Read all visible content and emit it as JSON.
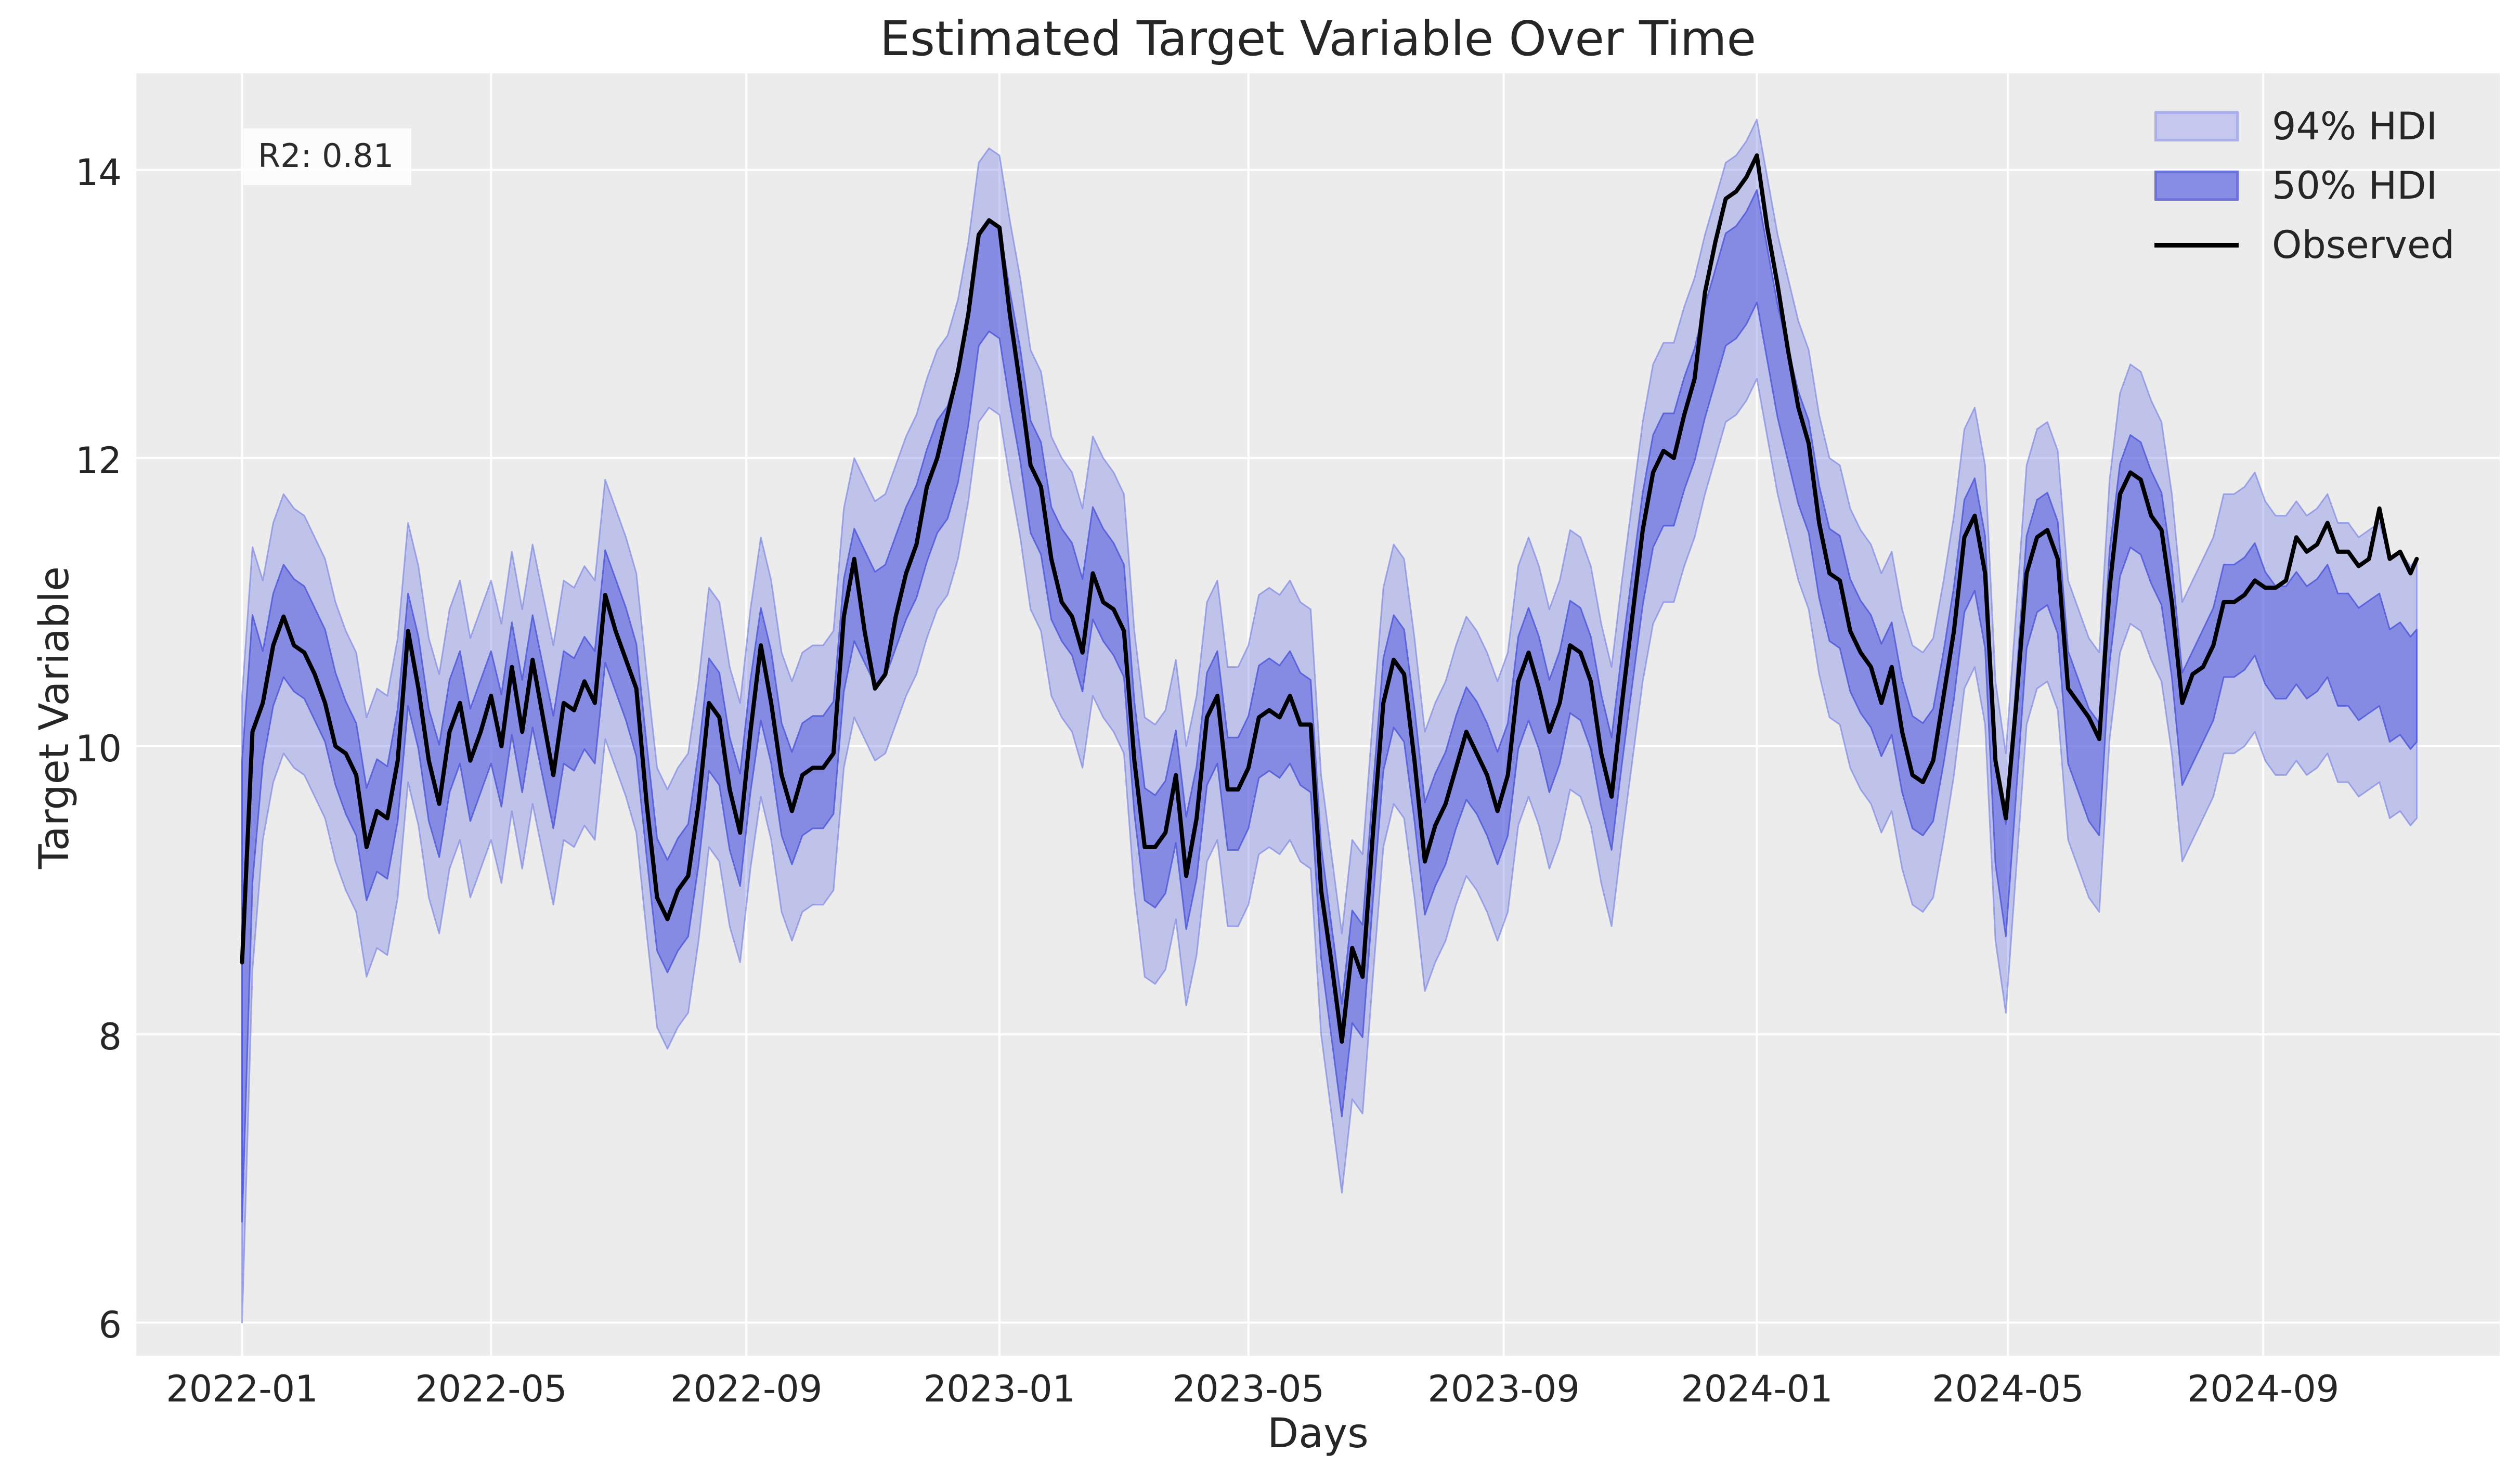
{
  "figure": {
    "title": "Estimated Target Variable Over Time"
  },
  "axes": {
    "xlabel": "Days",
    "ylabel": "Target Variable"
  },
  "annotation": {
    "r2_label": "R2: 0.81"
  },
  "legend": {
    "items": [
      {
        "label": "94% HDI",
        "swatch": "hdi94-patch"
      },
      {
        "label": "50% HDI",
        "swatch": "hdi50-patch"
      },
      {
        "label": "Observed",
        "swatch": "observed-line"
      }
    ]
  },
  "colors": {
    "axes_bg": "#ececec",
    "grid": "#ffffff",
    "band94_fill": "rgba(122,130,228,0.38)",
    "band94_edge": "rgba(122,130,228,0.65)",
    "band50_fill": "rgba(93,102,223,0.60)",
    "band50_edge": "rgba(80,89,218,0.85)",
    "observed": "#000000",
    "text": "#262626"
  },
  "chart_data": {
    "type": "line",
    "title": "Estimated Target Variable Over Time",
    "xlabel": "Days",
    "ylabel": "Target Variable",
    "legend_entries": [
      "94% HDI",
      "50% HDI",
      "Observed"
    ],
    "legend_position": "upper right",
    "grid": true,
    "x_unit": "days since 2022-01-01",
    "xlim_days": [
      -51,
      1088
    ],
    "ylim": [
      5.77,
      14.67
    ],
    "x_ticks": [
      {
        "day": 0,
        "label": "2022-01"
      },
      {
        "day": 120,
        "label": "2022-05"
      },
      {
        "day": 243,
        "label": "2022-09"
      },
      {
        "day": 365,
        "label": "2023-01"
      },
      {
        "day": 485,
        "label": "2023-05"
      },
      {
        "day": 608,
        "label": "2023-09"
      },
      {
        "day": 730,
        "label": "2024-01"
      },
      {
        "day": 851,
        "label": "2024-05"
      },
      {
        "day": 974,
        "label": "2024-09"
      }
    ],
    "y_ticks": [
      {
        "value": 6,
        "label": "6"
      },
      {
        "value": 8,
        "label": "8"
      },
      {
        "value": 10,
        "label": "10"
      },
      {
        "value": 12,
        "label": "12"
      },
      {
        "value": 14,
        "label": "14"
      }
    ],
    "days": [
      0,
      5,
      10,
      15,
      20,
      25,
      30,
      35,
      40,
      45,
      50,
      55,
      60,
      65,
      70,
      75,
      80,
      85,
      90,
      95,
      100,
      105,
      110,
      115,
      120,
      125,
      130,
      135,
      140,
      145,
      150,
      155,
      160,
      165,
      170,
      175,
      180,
      185,
      190,
      195,
      200,
      205,
      210,
      215,
      220,
      225,
      230,
      235,
      240,
      245,
      250,
      255,
      260,
      265,
      270,
      275,
      280,
      285,
      290,
      295,
      300,
      305,
      310,
      315,
      320,
      325,
      330,
      335,
      340,
      345,
      350,
      355,
      360,
      365,
      370,
      375,
      380,
      385,
      390,
      395,
      400,
      405,
      410,
      415,
      420,
      425,
      430,
      435,
      440,
      445,
      450,
      455,
      460,
      465,
      470,
      475,
      480,
      485,
      490,
      495,
      500,
      505,
      510,
      515,
      520,
      525,
      530,
      535,
      540,
      545,
      550,
      555,
      560,
      565,
      570,
      575,
      580,
      585,
      590,
      595,
      600,
      605,
      610,
      615,
      620,
      625,
      630,
      635,
      640,
      645,
      650,
      655,
      660,
      665,
      670,
      675,
      680,
      685,
      690,
      695,
      700,
      705,
      710,
      715,
      720,
      725,
      730,
      735,
      740,
      745,
      750,
      755,
      760,
      765,
      770,
      775,
      780,
      785,
      790,
      795,
      800,
      805,
      810,
      815,
      820,
      825,
      830,
      835,
      840,
      845,
      850,
      855,
      860,
      865,
      870,
      875,
      880,
      885,
      890,
      895,
      900,
      905,
      910,
      915,
      920,
      925,
      930,
      935,
      940,
      945,
      950,
      955,
      960,
      965,
      970,
      975,
      980,
      985,
      990,
      995,
      1000,
      1005,
      1010,
      1015,
      1020,
      1025,
      1030,
      1035,
      1040,
      1045,
      1048
    ],
    "observed": [
      8.5,
      10.1,
      10.3,
      10.7,
      10.9,
      10.7,
      10.65,
      10.5,
      10.3,
      10.0,
      9.95,
      9.8,
      9.3,
      9.55,
      9.5,
      9.9,
      10.8,
      10.4,
      9.9,
      9.6,
      10.1,
      10.3,
      9.9,
      10.1,
      10.35,
      10.0,
      10.55,
      10.1,
      10.6,
      10.2,
      9.8,
      10.3,
      10.25,
      10.45,
      10.3,
      11.05,
      10.8,
      10.6,
      10.4,
      9.6,
      8.95,
      8.8,
      9.0,
      9.1,
      9.6,
      10.3,
      10.2,
      9.7,
      9.4,
      10.1,
      10.7,
      10.3,
      9.8,
      9.55,
      9.8,
      9.85,
      9.85,
      9.95,
      10.9,
      11.3,
      10.8,
      10.4,
      10.5,
      10.9,
      11.2,
      11.4,
      11.8,
      12.0,
      12.3,
      12.6,
      13.0,
      13.55,
      13.65,
      13.6,
      13.0,
      12.5,
      11.95,
      11.8,
      11.3,
      11.0,
      10.9,
      10.65,
      11.2,
      11.0,
      10.95,
      10.8,
      9.9,
      9.3,
      9.3,
      9.4,
      9.8,
      9.1,
      9.5,
      10.2,
      10.35,
      9.7,
      9.7,
      9.85,
      10.2,
      10.25,
      10.2,
      10.35,
      10.15,
      10.15,
      9.0,
      8.5,
      7.95,
      8.6,
      8.4,
      9.4,
      10.3,
      10.6,
      10.5,
      9.9,
      9.2,
      9.45,
      9.6,
      9.85,
      10.1,
      9.95,
      9.8,
      9.55,
      9.8,
      10.45,
      10.65,
      10.4,
      10.1,
      10.3,
      10.7,
      10.65,
      10.45,
      9.95,
      9.65,
      10.3,
      10.9,
      11.5,
      11.9,
      12.05,
      12.0,
      12.3,
      12.55,
      13.15,
      13.5,
      13.8,
      13.85,
      13.95,
      14.1,
      13.6,
      13.2,
      12.75,
      12.35,
      12.1,
      11.55,
      11.2,
      11.15,
      10.8,
      10.65,
      10.55,
      10.3,
      10.55,
      10.1,
      9.8,
      9.75,
      9.9,
      10.35,
      10.8,
      11.45,
      11.6,
      11.2,
      9.9,
      9.5,
      10.3,
      11.2,
      11.45,
      11.5,
      11.3,
      10.4,
      10.3,
      10.2,
      10.05,
      11.1,
      11.75,
      11.9,
      11.85,
      11.6,
      11.5,
      11.0,
      10.3,
      10.5,
      10.55,
      10.7,
      11.0,
      11.0,
      11.05,
      11.15,
      11.1,
      11.1,
      11.15,
      11.45,
      11.35,
      11.4,
      11.55,
      11.35,
      11.35,
      11.25,
      11.3,
      11.65,
      11.3,
      11.35,
      11.2,
      11.3
    ],
    "posterior_median": [
      8.3,
      10.0,
      10.3,
      10.7,
      10.9,
      10.8,
      10.75,
      10.6,
      10.45,
      10.15,
      9.95,
      9.8,
      9.35,
      9.55,
      9.5,
      9.9,
      10.7,
      10.4,
      9.9,
      9.65,
      10.1,
      10.3,
      9.9,
      10.1,
      10.3,
      10.0,
      10.5,
      10.1,
      10.55,
      10.2,
      9.85,
      10.3,
      10.25,
      10.4,
      10.3,
      11.0,
      10.8,
      10.6,
      10.35,
      9.65,
      9.0,
      8.85,
      9.0,
      9.1,
      9.6,
      10.25,
      10.15,
      9.7,
      9.45,
      10.1,
      10.6,
      10.3,
      9.8,
      9.6,
      9.8,
      9.85,
      9.85,
      9.95,
      10.8,
      11.15,
      11.0,
      10.85,
      10.9,
      11.1,
      11.3,
      11.45,
      11.7,
      11.9,
      12.0,
      12.25,
      12.65,
      13.2,
      13.3,
      13.25,
      12.8,
      12.4,
      11.9,
      11.75,
      11.3,
      11.15,
      11.05,
      10.8,
      11.3,
      11.15,
      11.05,
      10.9,
      9.95,
      9.35,
      9.3,
      9.4,
      9.75,
      9.15,
      9.5,
      10.15,
      10.3,
      9.7,
      9.7,
      9.85,
      10.2,
      10.25,
      10.2,
      10.3,
      10.15,
      10.1,
      8.95,
      8.4,
      7.85,
      8.5,
      8.4,
      9.35,
      10.25,
      10.55,
      10.45,
      9.9,
      9.25,
      9.45,
      9.6,
      9.85,
      10.05,
      9.95,
      9.8,
      9.6,
      9.8,
      10.4,
      10.6,
      10.4,
      10.1,
      10.3,
      10.65,
      10.6,
      10.4,
      10.0,
      9.7,
      10.3,
      10.85,
      11.4,
      11.8,
      11.95,
      11.95,
      12.2,
      12.4,
      12.7,
      12.95,
      13.2,
      13.25,
      13.35,
      13.5,
      13.1,
      12.7,
      12.4,
      12.1,
      11.9,
      11.45,
      11.15,
      11.1,
      10.8,
      10.65,
      10.55,
      10.35,
      10.5,
      10.1,
      9.85,
      9.8,
      9.9,
      10.3,
      10.75,
      11.35,
      11.5,
      11.1,
      9.6,
      9.1,
      10.1,
      11.1,
      11.35,
      11.4,
      11.2,
      10.3,
      10.1,
      9.9,
      9.8,
      11.0,
      11.6,
      11.8,
      11.75,
      11.55,
      11.4,
      10.9,
      10.15,
      10.3,
      10.45,
      10.6,
      10.9,
      10.9,
      10.95,
      11.05,
      10.85,
      10.75,
      10.75,
      10.85,
      10.75,
      10.8,
      10.9,
      10.7,
      10.7,
      10.6,
      10.65,
      10.7,
      10.45,
      10.5,
      10.4,
      10.45
    ],
    "bands": {
      "hdi50_below": 0.42,
      "hdi50_above": 0.36,
      "hdi94_below": 0.95,
      "hdi94_above": 0.85,
      "start_taper_days": 9,
      "hdi94_at_day0": [
        6.0,
        10.35
      ],
      "hdi50_at_day0": [
        6.7,
        9.9
      ]
    }
  }
}
